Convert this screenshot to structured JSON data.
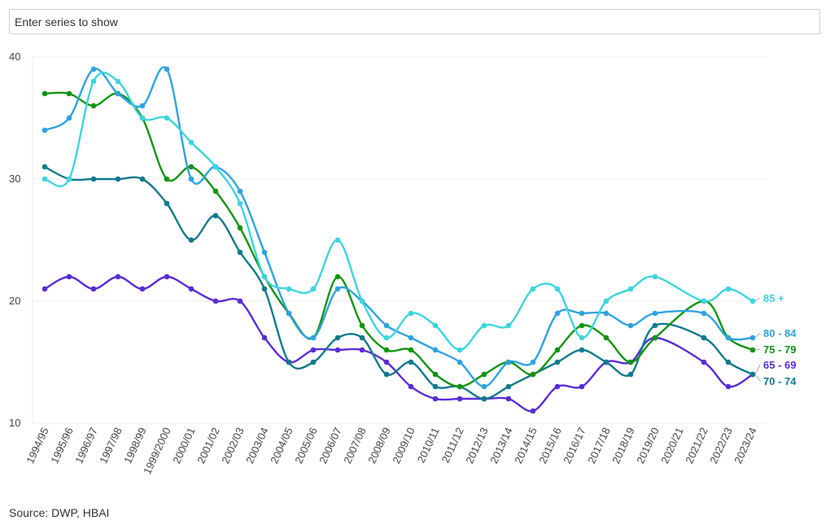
{
  "search": {
    "placeholder": "Enter series to show"
  },
  "source": "Source: DWP, HBAI",
  "chart_data": {
    "type": "line",
    "title": "",
    "xlabel": "",
    "ylabel": "",
    "ylim": [
      10,
      40
    ],
    "yticks": [
      10,
      20,
      30,
      40
    ],
    "grid": true,
    "legend": "end-of-line labels",
    "categories": [
      "1994/95",
      "1995/96",
      "1996/97",
      "1997/98",
      "1998/99",
      "1999/2000",
      "2000/01",
      "2001/02",
      "2002/03",
      "2003/04",
      "2004/05",
      "2005/06",
      "2006/07",
      "2007/08",
      "2008/09",
      "2009/10",
      "2010/11",
      "2011/12",
      "2012/13",
      "2013/14",
      "2014/15",
      "2015/16",
      "2016/17",
      "2017/18",
      "2018/19",
      "2019/20",
      "2020/21",
      "2021/22",
      "2022/23",
      "2023/24"
    ],
    "series": [
      {
        "name": "65 - 69",
        "color": "#5b2bd6",
        "values": [
          21,
          22,
          21,
          22,
          21,
          22,
          21,
          20,
          20,
          17,
          15,
          16,
          16,
          16,
          15,
          13,
          12,
          12,
          12,
          12,
          11,
          13,
          13,
          15,
          15,
          17,
          null,
          15,
          13,
          14
        ]
      },
      {
        "name": "70 - 74",
        "color": "#0f7a8c",
        "values": [
          31,
          30,
          30,
          30,
          30,
          28,
          25,
          27,
          24,
          21,
          15,
          15,
          17,
          17,
          14,
          15,
          13,
          13,
          12,
          13,
          14,
          15,
          16,
          15,
          14,
          18,
          null,
          17,
          15,
          14
        ]
      },
      {
        "name": "75 - 79",
        "color": "#119411",
        "values": [
          37,
          37,
          36,
          37,
          35,
          30,
          31,
          29,
          26,
          22,
          19,
          17,
          22,
          18,
          16,
          16,
          14,
          13,
          14,
          15,
          14,
          16,
          18,
          17,
          15,
          17,
          null,
          20,
          17,
          16
        ]
      },
      {
        "name": "80 - 84",
        "color": "#2ea3e0",
        "values": [
          34,
          35,
          39,
          37,
          36,
          39,
          30,
          31,
          29,
          24,
          19,
          17,
          21,
          20,
          18,
          17,
          16,
          15,
          13,
          15,
          15,
          19,
          19,
          19,
          18,
          19,
          null,
          19,
          17,
          17
        ]
      },
      {
        "name": "85 +",
        "color": "#3dd4de",
        "values": [
          30,
          30,
          38,
          38,
          35,
          35,
          33,
          31,
          28,
          22,
          21,
          21,
          25,
          20,
          17,
          19,
          18,
          16,
          18,
          18,
          21,
          21,
          17,
          20,
          21,
          22,
          null,
          20,
          21,
          20
        ]
      }
    ]
  }
}
